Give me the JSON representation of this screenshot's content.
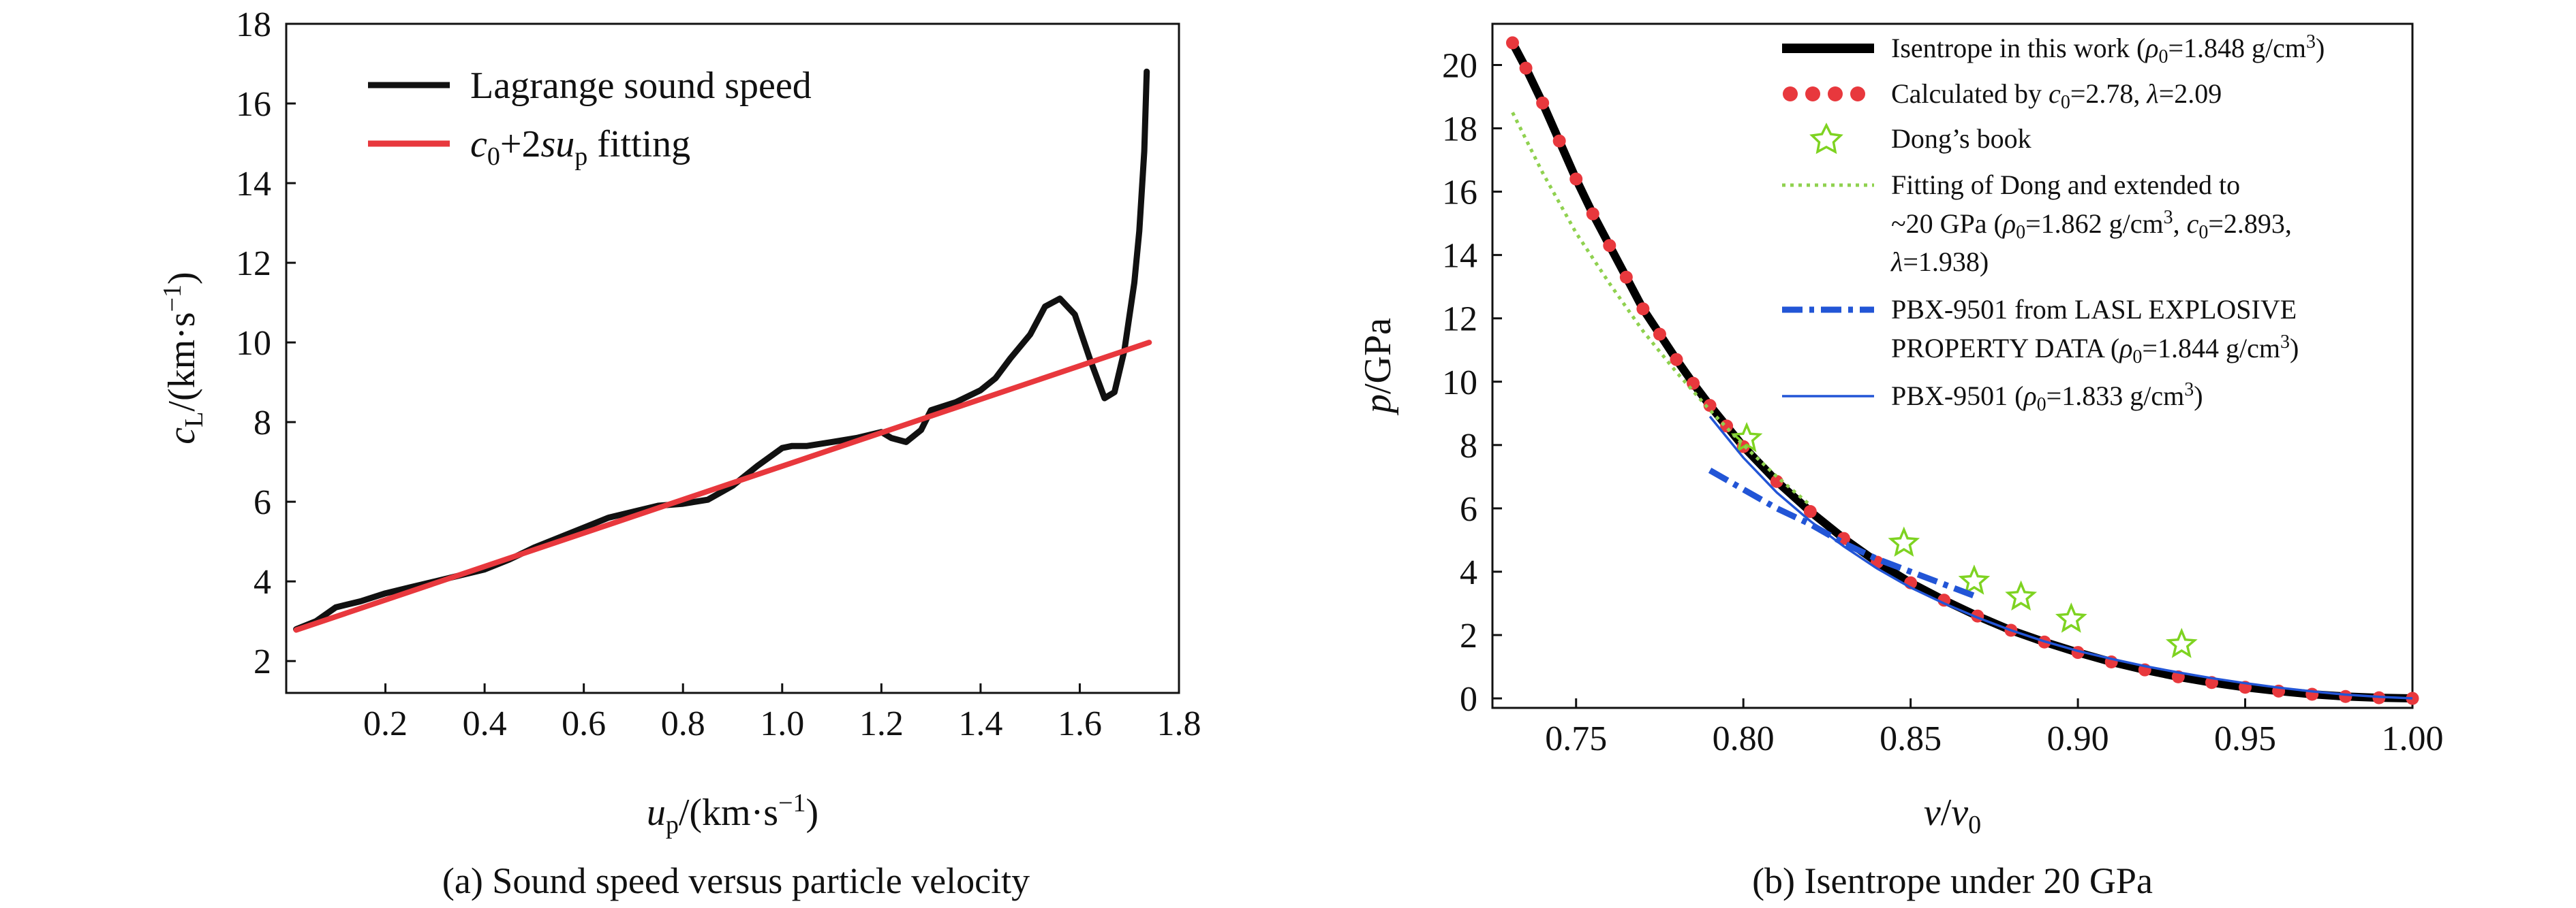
{
  "chart_data": [
    {
      "type": "line",
      "caption": "(a) Sound speed versus particle velocity",
      "xlabel": {
        "main": "u",
        "sub": "p",
        "tail": "/(km·s",
        "sup": "−1",
        "end": ")"
      },
      "ylabel": {
        "main": "c",
        "sub": "L",
        "tail": "/(km·s",
        "sup": "−1",
        "end": ")"
      },
      "xlim": [
        0,
        1.8
      ],
      "ylim": [
        1.2,
        18
      ],
      "xticks": [
        {
          "value": 0.2,
          "label": "0.2"
        },
        {
          "value": 0.4,
          "label": "0.4"
        },
        {
          "value": 0.6,
          "label": "0.6"
        },
        {
          "value": 0.8,
          "label": "0.8"
        },
        {
          "value": 1.0,
          "label": "1.0"
        },
        {
          "value": 1.2,
          "label": "1.2"
        },
        {
          "value": 1.4,
          "label": "1.4"
        },
        {
          "value": 1.6,
          "label": "1.6"
        },
        {
          "value": 1.8,
          "label": "1.8"
        }
      ],
      "yticks": [
        {
          "value": 2,
          "label": "2"
        },
        {
          "value": 4,
          "label": "4"
        },
        {
          "value": 6,
          "label": "6"
        },
        {
          "value": 8,
          "label": "8"
        },
        {
          "value": 10,
          "label": "10"
        },
        {
          "value": 12,
          "label": "12"
        },
        {
          "value": 14,
          "label": "14"
        },
        {
          "value": 16,
          "label": "16"
        },
        {
          "value": 18,
          "label": "18"
        }
      ],
      "legend_position": "top-left",
      "series": [
        {
          "name": "Lagrange sound speed",
          "color": "#111111",
          "style": "solid",
          "x": [
            0.02,
            0.06,
            0.1,
            0.15,
            0.2,
            0.25,
            0.3,
            0.35,
            0.4,
            0.45,
            0.5,
            0.55,
            0.6,
            0.65,
            0.7,
            0.75,
            0.8,
            0.85,
            0.9,
            0.95,
            1.0,
            1.02,
            1.05,
            1.1,
            1.15,
            1.2,
            1.22,
            1.25,
            1.28,
            1.3,
            1.35,
            1.4,
            1.43,
            1.46,
            1.5,
            1.53,
            1.56,
            1.59,
            1.62,
            1.65,
            1.67,
            1.69,
            1.71,
            1.72,
            1.73,
            1.735
          ],
          "y": [
            2.8,
            3.0,
            3.35,
            3.5,
            3.7,
            3.85,
            4.0,
            4.15,
            4.3,
            4.55,
            4.85,
            5.1,
            5.35,
            5.6,
            5.75,
            5.9,
            5.95,
            6.05,
            6.4,
            6.9,
            7.35,
            7.4,
            7.4,
            7.5,
            7.6,
            7.75,
            7.6,
            7.5,
            7.8,
            8.3,
            8.5,
            8.8,
            9.1,
            9.6,
            10.2,
            10.9,
            11.1,
            10.7,
            9.6,
            8.6,
            8.75,
            9.8,
            11.5,
            12.8,
            14.8,
            16.8
          ]
        },
        {
          "name": "c₀+2su_p fitting",
          "color": "#e8383d",
          "style": "solid",
          "x": [
            0.02,
            1.74
          ],
          "y": [
            2.78,
            10.0
          ]
        }
      ]
    },
    {
      "type": "line",
      "caption": "(b) Isentrope under 20 GPa",
      "xlabel": {
        "main": "v",
        "sep": "/",
        "den": "v",
        "sub": "0"
      },
      "ylabel": {
        "main": "p",
        "tail": "/GPa"
      },
      "xlim": [
        0.725,
        1.0
      ],
      "ylim": [
        -0.3,
        21.3
      ],
      "xticks": [
        {
          "value": 0.75,
          "label": "0.75"
        },
        {
          "value": 0.8,
          "label": "0.80"
        },
        {
          "value": 0.85,
          "label": "0.85"
        },
        {
          "value": 0.9,
          "label": "0.90"
        },
        {
          "value": 0.95,
          "label": "0.95"
        },
        {
          "value": 1.0,
          "label": "1.00"
        }
      ],
      "yticks": [
        {
          "value": 0,
          "label": "0"
        },
        {
          "value": 2,
          "label": "2"
        },
        {
          "value": 4,
          "label": "4"
        },
        {
          "value": 6,
          "label": "6"
        },
        {
          "value": 8,
          "label": "8"
        },
        {
          "value": 10,
          "label": "10"
        },
        {
          "value": 12,
          "label": "12"
        },
        {
          "value": 14,
          "label": "14"
        },
        {
          "value": 16,
          "label": "16"
        },
        {
          "value": 18,
          "label": "18"
        },
        {
          "value": 20,
          "label": "20"
        }
      ],
      "legend_position": "top-right",
      "series": [
        {
          "name": "Isentrope in this work (ρ₀=1.848 g/cm³)",
          "color": "#000000",
          "style": "thick",
          "x": [
            0.731,
            0.735,
            0.74,
            0.745,
            0.75,
            0.755,
            0.76,
            0.765,
            0.77,
            0.775,
            0.78,
            0.785,
            0.79,
            0.795,
            0.8,
            0.81,
            0.82,
            0.83,
            0.84,
            0.85,
            0.86,
            0.87,
            0.88,
            0.89,
            0.9,
            0.91,
            0.92,
            0.93,
            0.94,
            0.95,
            0.96,
            0.97,
            0.98,
            0.99,
            1.0
          ],
          "y": [
            20.7,
            19.9,
            18.8,
            17.6,
            16.4,
            15.3,
            14.3,
            13.3,
            12.3,
            11.5,
            10.7,
            9.95,
            9.25,
            8.6,
            7.95,
            6.85,
            5.9,
            5.05,
            4.3,
            3.65,
            3.1,
            2.6,
            2.15,
            1.78,
            1.45,
            1.15,
            0.9,
            0.68,
            0.5,
            0.35,
            0.23,
            0.13,
            0.06,
            0.02,
            0.0
          ]
        },
        {
          "name": "Calculated by c₀=2.78, λ=2.09",
          "color": "#e8383d",
          "style": "dots",
          "x": [
            0.731,
            0.735,
            0.74,
            0.745,
            0.75,
            0.755,
            0.76,
            0.765,
            0.77,
            0.775,
            0.78,
            0.785,
            0.79,
            0.795,
            0.8,
            0.81,
            0.82,
            0.83,
            0.84,
            0.85,
            0.86,
            0.87,
            0.88,
            0.89,
            0.9,
            0.91,
            0.92,
            0.93,
            0.94,
            0.95,
            0.96,
            0.97,
            0.98,
            0.99,
            1.0
          ],
          "y": [
            20.7,
            19.9,
            18.8,
            17.6,
            16.4,
            15.3,
            14.3,
            13.3,
            12.3,
            11.5,
            10.7,
            9.95,
            9.25,
            8.6,
            7.95,
            6.85,
            5.9,
            5.05,
            4.3,
            3.65,
            3.1,
            2.6,
            2.15,
            1.78,
            1.45,
            1.15,
            0.9,
            0.68,
            0.5,
            0.35,
            0.23,
            0.13,
            0.06,
            0.02,
            0.0
          ]
        },
        {
          "name": "Dong’s book",
          "color": "#7ed321",
          "style": "stars",
          "x": [
            0.801,
            0.848,
            0.869,
            0.883,
            0.898,
            0.931
          ],
          "y": [
            8.2,
            4.9,
            3.7,
            3.2,
            2.5,
            1.7
          ]
        },
        {
          "name": "Fitting of Dong and extended to ~20 GPa (ρ₀=1.862 g/cm³, c₀=2.893, λ=1.938)",
          "color": "#8fd14f",
          "style": "dotted",
          "x": [
            0.731,
            0.74,
            0.75,
            0.76,
            0.77,
            0.78,
            0.79,
            0.8,
            0.81,
            0.82
          ],
          "y": [
            18.5,
            16.6,
            14.7,
            13.1,
            11.6,
            10.3,
            9.1,
            8.0,
            7.0,
            6.1
          ]
        },
        {
          "name": "PBX-9501 from LASL EXPLOSIVE PROPERTY DATA (ρ₀=1.844 g/cm³)",
          "color": "#2255d6",
          "style": "dashdot",
          "x": [
            0.79,
            0.8,
            0.81,
            0.82,
            0.83,
            0.84,
            0.85,
            0.86,
            0.87
          ],
          "y": [
            7.2,
            6.6,
            6.0,
            5.5,
            4.9,
            4.4,
            4.0,
            3.6,
            3.2
          ]
        },
        {
          "name": "PBX-9501 (ρ₀=1.833 g/cm³)",
          "color": "#2255d6",
          "style": "thin",
          "x": [
            0.79,
            0.8,
            0.81,
            0.82,
            0.83,
            0.84,
            0.85,
            0.86,
            0.87,
            0.88,
            0.89,
            0.9,
            0.91,
            0.92,
            0.93,
            0.94,
            0.95,
            0.96,
            0.97,
            0.98,
            0.99,
            1.0
          ],
          "y": [
            8.9,
            7.6,
            6.5,
            5.6,
            4.8,
            4.1,
            3.5,
            3.0,
            2.55,
            2.15,
            1.8,
            1.5,
            1.25,
            1.02,
            0.82,
            0.64,
            0.48,
            0.34,
            0.22,
            0.12,
            0.05,
            0.0
          ]
        }
      ]
    }
  ]
}
